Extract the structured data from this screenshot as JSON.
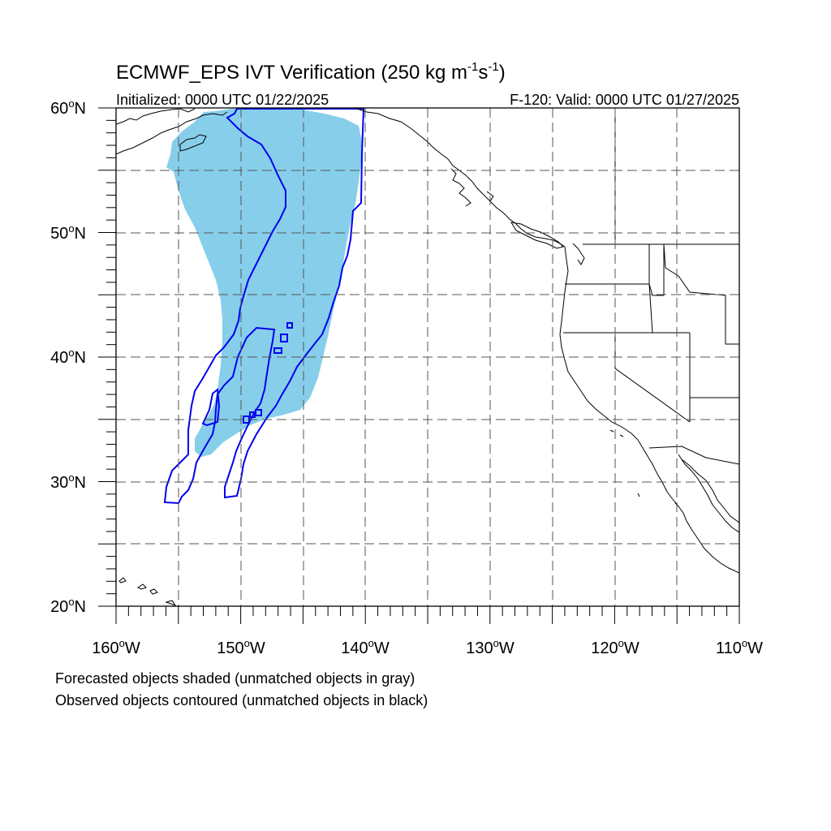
{
  "title": {
    "main": "ECMWF_EPS IVT Verification (250 kg m",
    "exp1": "-1",
    "mid": "s",
    "exp2": "-1",
    "end": ")"
  },
  "subtitle_left": "Initialized: 0000 UTC 01/22/2025",
  "subtitle_right": "F-120: Valid: 0000 UTC 01/27/2025",
  "map": {
    "lon_range": [
      -160,
      -110
    ],
    "lat_range": [
      20,
      60
    ],
    "grid": "dashed, every 5 degrees",
    "land_fill": "none",
    "coastline_color": "#000000"
  },
  "lat_labels": [
    {
      "value": 60,
      "label": "60",
      "hemi": "N"
    },
    {
      "value": 50,
      "label": "50",
      "hemi": "N"
    },
    {
      "value": 40,
      "label": "40",
      "hemi": "N"
    },
    {
      "value": 30,
      "label": "30",
      "hemi": "N"
    },
    {
      "value": 20,
      "label": "20",
      "hemi": "N"
    }
  ],
  "lon_labels": [
    {
      "value": -160,
      "label": "160",
      "hemi": "W"
    },
    {
      "value": -150,
      "label": "150",
      "hemi": "W"
    },
    {
      "value": -140,
      "label": "140",
      "hemi": "W"
    },
    {
      "value": -130,
      "label": "130",
      "hemi": "W"
    },
    {
      "value": -120,
      "label": "120",
      "hemi": "W"
    },
    {
      "value": -110,
      "label": "110",
      "hemi": "W"
    }
  ],
  "degree_symbol": "o",
  "forecast_object": {
    "color": "#87ceeb",
    "matched": true
  },
  "observed_objects": {
    "color": "#0000ee",
    "matched": true
  },
  "notes": [
    "Forecasted objects shaded (unmatched objects in gray)",
    "Observed objects contoured (unmatched objects in black)"
  ]
}
